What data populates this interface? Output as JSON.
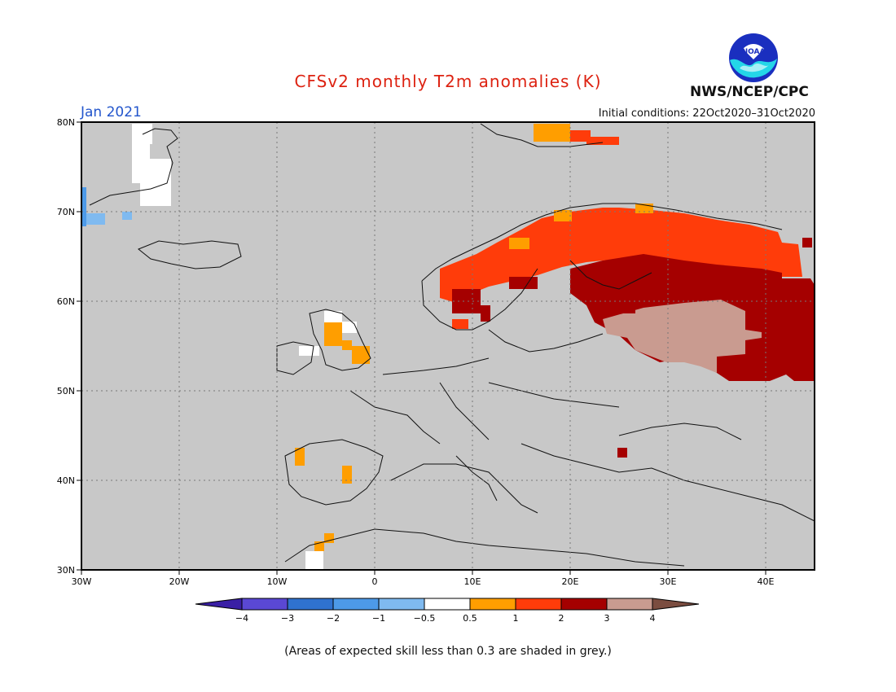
{
  "header": {
    "title": "CFSv2 monthly T2m anomalies (K)",
    "month": "Jan 2021",
    "initial_conditions": "Initial conditions: 22Oct2020–31Oct2020",
    "organization": "NWS/NCEP/CPC",
    "logo_text": "NOAA"
  },
  "map": {
    "lon_labels": [
      "30W",
      "20W",
      "10W",
      "0",
      "10E",
      "20E",
      "30E",
      "40E"
    ],
    "lat_labels": [
      "80N",
      "70N",
      "60N",
      "50N",
      "40N",
      "30N"
    ],
    "lon_range": [
      -30,
      45
    ],
    "lat_range": [
      30,
      80
    ],
    "background_color": "#c8c8c8"
  },
  "colorbar": {
    "ticks": [
      "−4",
      "−3",
      "−2",
      "−1",
      "−0.5",
      "0.5",
      "1",
      "2",
      "3",
      "4"
    ],
    "colors": [
      "#3a1fa5",
      "#5a48d4",
      "#2f72cf",
      "#4d9ae8",
      "#7fbaf0",
      "#ffffff",
      "#ff9e00",
      "#ff3c0a",
      "#a50000",
      "#c99b90",
      "#7b4d40"
    ]
  },
  "footnote": "(Areas of expected skill less than 0.3 are shaded in grey.)"
}
